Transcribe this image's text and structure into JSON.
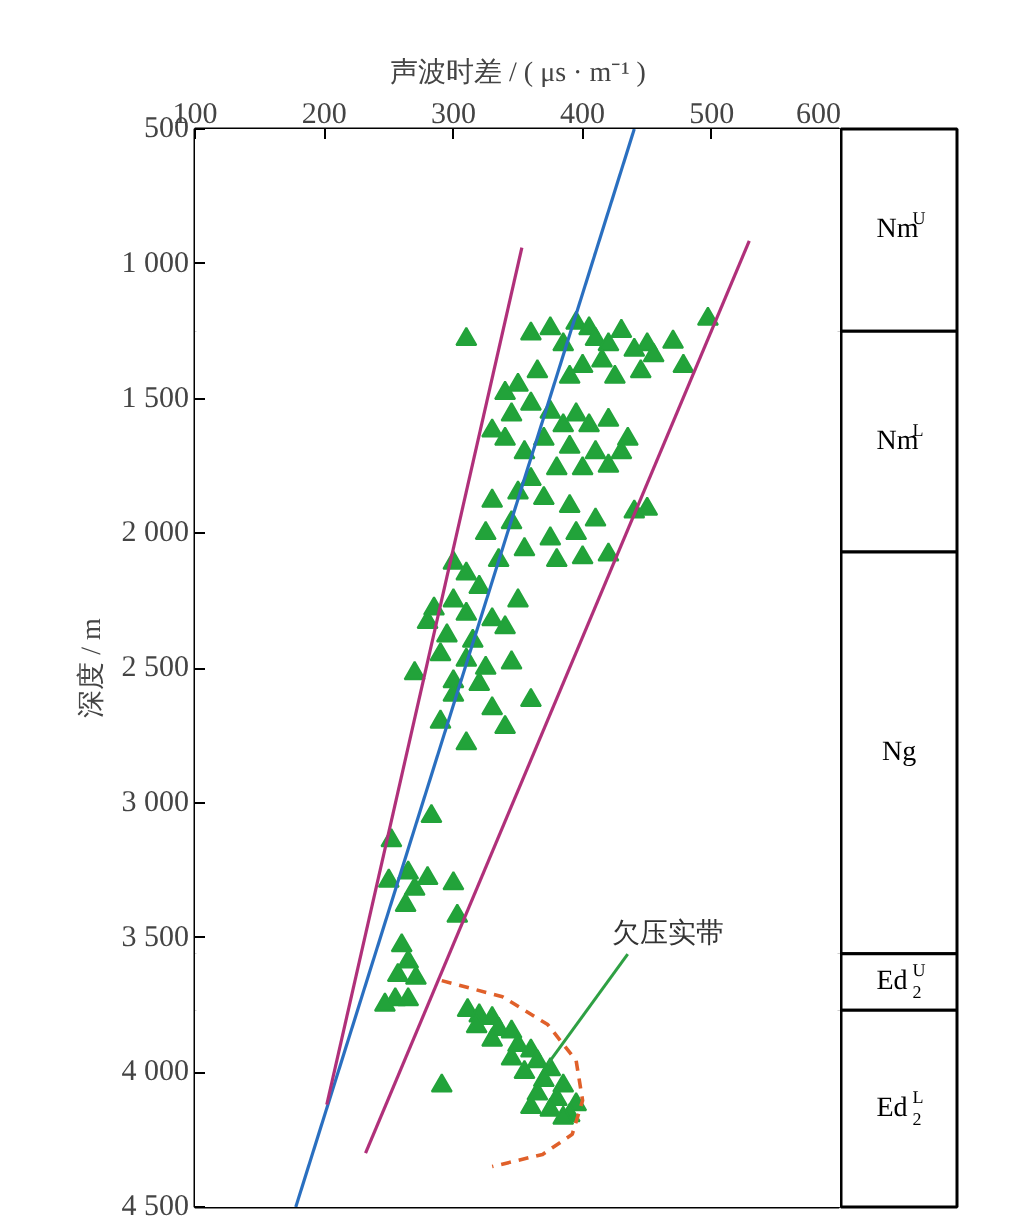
{
  "chart_data": [
    {
      "type": "scatter",
      "xlabel": "声波时差 / ( μs · m⁻¹ )",
      "ylabel": "深度 / m",
      "xlim": [
        100,
        600
      ],
      "xticks": [
        100,
        200,
        300,
        400,
        500,
        600
      ],
      "ylim": [
        4500,
        500
      ],
      "yticks": [
        500,
        {
          "value": 1000,
          "label": "1 000"
        },
        {
          "value": 1500,
          "label": "1 500"
        },
        {
          "value": 2000,
          "label": "2 000"
        },
        {
          "value": 2500,
          "label": "2 500"
        },
        {
          "value": 3000,
          "label": "3 000"
        },
        {
          "value": 3500,
          "label": "3 500"
        },
        {
          "value": 4000,
          "label": "4 000"
        },
        {
          "value": 4500,
          "label": "4 500"
        }
      ],
      "grid": false,
      "marker": "triangle",
      "series": [
        {
          "color": "#22a33a",
          "x": [
            310,
            360,
            375,
            385,
            395,
            405,
            410,
            420,
            430,
            440,
            450,
            455,
            470,
            478,
            497,
            400,
            415,
            390,
            365,
            350,
            425,
            445,
            340,
            345,
            360,
            375,
            385,
            395,
            405,
            420,
            435,
            430,
            410,
            390,
            370,
            355,
            340,
            330,
            400,
            420,
            380,
            360,
            350,
            370,
            330,
            390,
            410,
            395,
            375,
            345,
            325,
            440,
            450,
            420,
            400,
            380,
            355,
            335,
            310,
            300,
            320,
            300,
            285,
            310,
            330,
            350,
            280,
            295,
            315,
            340,
            290,
            310,
            325,
            345,
            360,
            270,
            300,
            320,
            300,
            330,
            290,
            340,
            310,
            283,
            252,
            250,
            265,
            280,
            300,
            270,
            263,
            303,
            260,
            265,
            257,
            271,
            255,
            247,
            265,
            291,
            311,
            320,
            330,
            318,
            335,
            345,
            330,
            350,
            360,
            345,
            365,
            375,
            355,
            370,
            385,
            365,
            380,
            395,
            375,
            390,
            360,
            385
          ],
          "values": [
            1280,
            1260,
            1240,
            1300,
            1220,
            1240,
            1280,
            1300,
            1250,
            1320,
            1300,
            1340,
            1290,
            1380,
            1205,
            1380,
            1360,
            1420,
            1400,
            1450,
            1420,
            1400,
            1480,
            1560,
            1520,
            1550,
            1600,
            1560,
            1600,
            1580,
            1650,
            1700,
            1700,
            1680,
            1650,
            1700,
            1650,
            1620,
            1760,
            1750,
            1760,
            1800,
            1850,
            1870,
            1880,
            1900,
            1950,
            2000,
            2020,
            1960,
            2000,
            1920,
            1910,
            2080,
            2090,
            2100,
            2060,
            2100,
            2150,
            2110,
            2200,
            2250,
            2280,
            2300,
            2320,
            2250,
            2330,
            2380,
            2400,
            2350,
            2450,
            2470,
            2500,
            2480,
            2620,
            2520,
            2550,
            2560,
            2600,
            2650,
            2700,
            2720,
            2780,
            3050,
            3140,
            3290,
            3260,
            3280,
            3300,
            3320,
            3380,
            3420,
            3530,
            3590,
            3640,
            3650,
            3730,
            3750,
            3730,
            4050,
            3770,
            3790,
            3800,
            3830,
            3840,
            3850,
            3880,
            3900,
            3920,
            3950,
            3960,
            3990,
            4000,
            4030,
            4050,
            4080,
            4100,
            4120,
            4140,
            4160,
            4130,
            4170
          ]
        },
        {
          "type": "line",
          "marker": "none",
          "color": "#2a6fc0",
          "x": [
            440,
            178
          ],
          "values": [
            500,
            4500
          ]
        },
        {
          "type": "line",
          "marker": "none",
          "color": "#b0307a",
          "x": [
            353,
            202
          ],
          "values": [
            940,
            4120
          ]
        },
        {
          "type": "line",
          "marker": "none",
          "color": "#b0307a",
          "x": [
            529,
            232
          ],
          "values": [
            915,
            4300
          ]
        },
        {
          "type": "line",
          "marker": "none",
          "line_style": "dashed",
          "color": "#e0602a",
          "x": [
            291,
            338,
            373,
            395,
            400,
            392,
            369,
            330
          ],
          "values": [
            3660,
            3720,
            3823,
            3957,
            4105,
            4230,
            4305,
            4350
          ]
        }
      ],
      "annotations": [
        {
          "text": "欠压实带",
          "x": 373,
          "y": 3970
        }
      ],
      "bands": [
        {
          "axis": "y",
          "from": 500,
          "to": 1250,
          "label": "Nm$^{U}$",
          "color": "#ffffff"
        },
        {
          "axis": "y",
          "from": 1250,
          "to": 2070,
          "label": "Nm$^{L}$",
          "color": "#ffffff"
        },
        {
          "axis": "y",
          "from": 2070,
          "to": 3560,
          "label": "Ng",
          "color": "#ffffff"
        },
        {
          "axis": "y",
          "from": 3560,
          "to": 3770,
          "label": "Ed$_{2}$$^{U}$",
          "color": "#ffffff"
        },
        {
          "axis": "y",
          "from": 3770,
          "to": 4500,
          "label": "Ed$_{2}$$^{L}$",
          "color": "#ffffff"
        }
      ]
    }
  ]
}
